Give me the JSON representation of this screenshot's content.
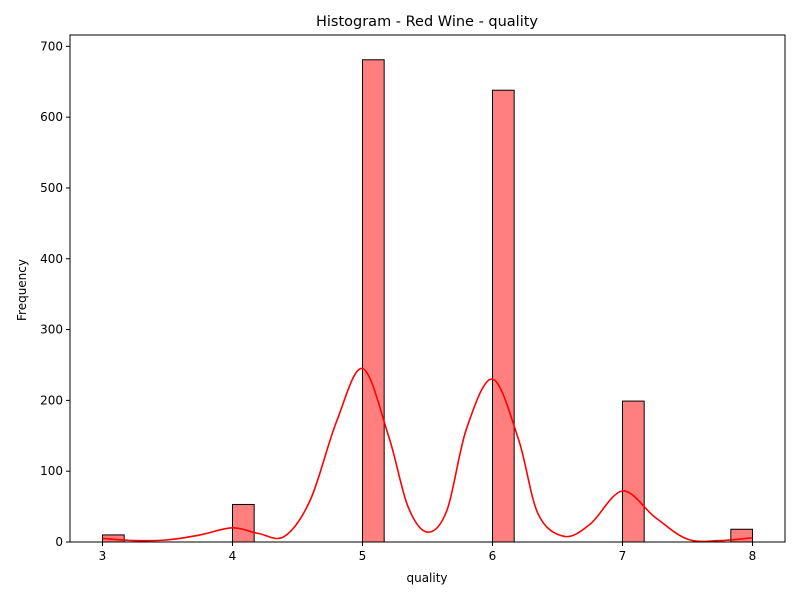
{
  "chart_data": {
    "type": "bar",
    "title": "Histogram - Red Wine - quality",
    "xlabel": "quality",
    "ylabel": "Frequency",
    "xlim": [
      2.75,
      8.25
    ],
    "ylim": [
      0,
      716
    ],
    "x_ticks": [
      3,
      4,
      5,
      6,
      7,
      8
    ],
    "y_ticks": [
      0,
      100,
      200,
      300,
      400,
      500,
      600,
      700
    ],
    "bin_width": 0.1667,
    "bins": [
      {
        "start": 3.0,
        "value": 10
      },
      {
        "start": 4.0,
        "value": 53
      },
      {
        "start": 5.0,
        "value": 681
      },
      {
        "start": 6.0,
        "value": 638
      },
      {
        "start": 7.0,
        "value": 199
      },
      {
        "start": 7.8333,
        "value": 18
      }
    ],
    "kde": {
      "x": [
        3.0,
        3.25,
        3.5,
        3.75,
        4.0,
        4.2,
        4.4,
        4.6,
        4.8,
        5.0,
        5.2,
        5.35,
        5.5,
        5.65,
        5.8,
        6.0,
        6.2,
        6.35,
        6.55,
        6.75,
        7.0,
        7.25,
        7.5,
        7.75,
        8.0
      ],
      "y": [
        5,
        2,
        3,
        10,
        20,
        12,
        8,
        60,
        170,
        245,
        150,
        50,
        14,
        45,
        160,
        230,
        145,
        40,
        8,
        25,
        72,
        35,
        4,
        2,
        6
      ]
    },
    "grid": false,
    "legend": "none",
    "colors": {
      "bar_fill": "#ff7f7f",
      "bar_edge": "#000000",
      "kde_line": "#ff0000"
    }
  }
}
